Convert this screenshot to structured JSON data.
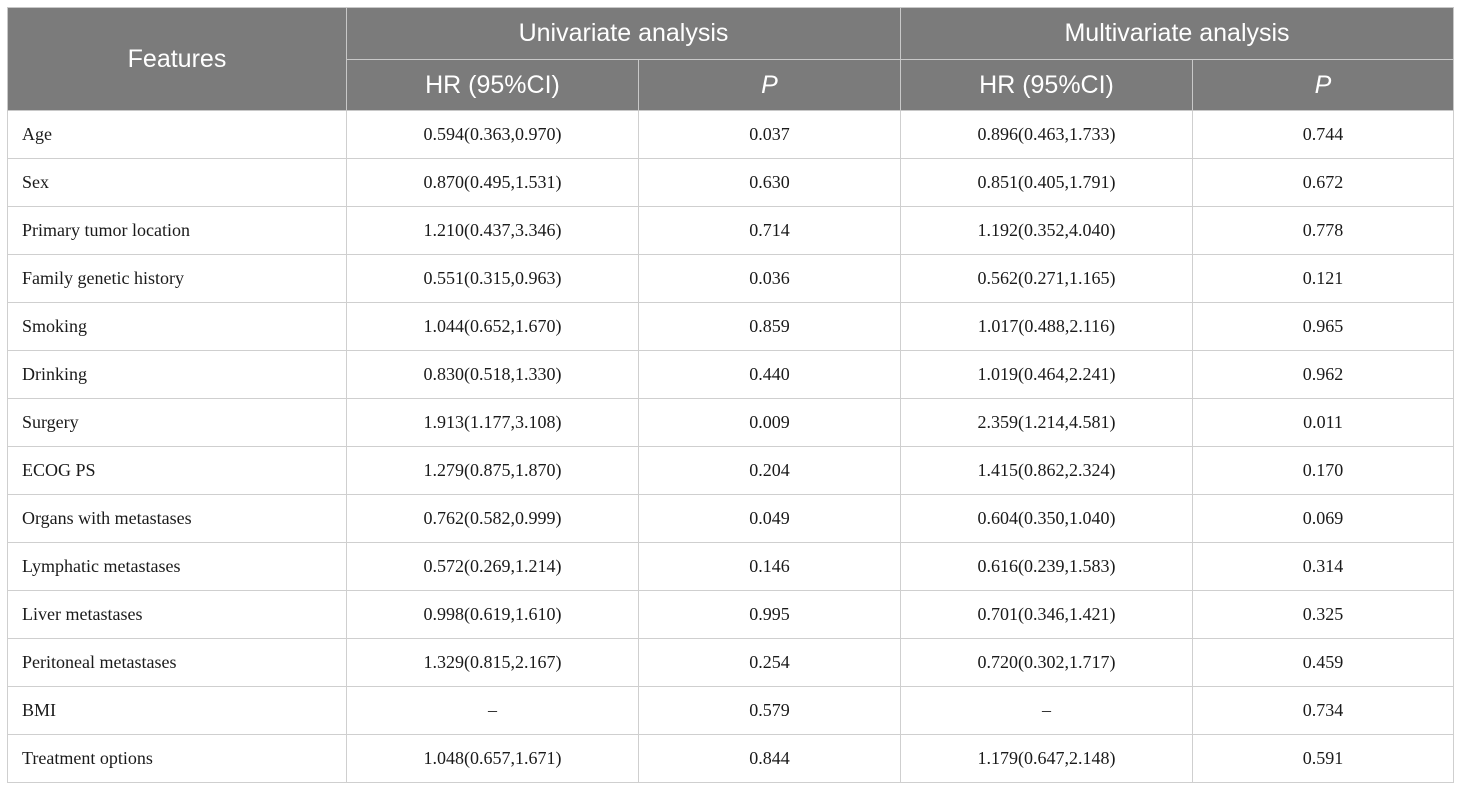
{
  "table": {
    "headers": {
      "features": "Features",
      "univariate": "Univariate analysis",
      "multivariate": "Multivariate analysis",
      "hr": "HR (95%CI)",
      "p": "P"
    },
    "rows": [
      {
        "feature": "Age",
        "uni_hr": "0.594(0.363,0.970)",
        "uni_p": "0.037",
        "multi_hr": "0.896(0.463,1.733)",
        "multi_p": "0.744"
      },
      {
        "feature": "Sex",
        "uni_hr": "0.870(0.495,1.531)",
        "uni_p": "0.630",
        "multi_hr": "0.851(0.405,1.791)",
        "multi_p": "0.672"
      },
      {
        "feature": "Primary tumor location",
        "uni_hr": "1.210(0.437,3.346)",
        "uni_p": "0.714",
        "multi_hr": "1.192(0.352,4.040)",
        "multi_p": "0.778"
      },
      {
        "feature": "Family genetic history",
        "uni_hr": "0.551(0.315,0.963)",
        "uni_p": "0.036",
        "multi_hr": "0.562(0.271,1.165)",
        "multi_p": "0.121"
      },
      {
        "feature": "Smoking",
        "uni_hr": "1.044(0.652,1.670)",
        "uni_p": "0.859",
        "multi_hr": "1.017(0.488,2.116)",
        "multi_p": "0.965"
      },
      {
        "feature": "Drinking",
        "uni_hr": "0.830(0.518,1.330)",
        "uni_p": "0.440",
        "multi_hr": "1.019(0.464,2.241)",
        "multi_p": "0.962"
      },
      {
        "feature": "Surgery",
        "uni_hr": "1.913(1.177,3.108)",
        "uni_p": "0.009",
        "multi_hr": "2.359(1.214,4.581)",
        "multi_p": "0.011"
      },
      {
        "feature": "ECOG PS",
        "uni_hr": "1.279(0.875,1.870)",
        "uni_p": "0.204",
        "multi_hr": "1.415(0.862,2.324)",
        "multi_p": "0.170"
      },
      {
        "feature": "Organs with metastases",
        "uni_hr": "0.762(0.582,0.999)",
        "uni_p": "0.049",
        "multi_hr": "0.604(0.350,1.040)",
        "multi_p": "0.069"
      },
      {
        "feature": "Lymphatic metastases",
        "uni_hr": "0.572(0.269,1.214)",
        "uni_p": "0.146",
        "multi_hr": "0.616(0.239,1.583)",
        "multi_p": "0.314"
      },
      {
        "feature": "Liver metastases",
        "uni_hr": "0.998(0.619,1.610)",
        "uni_p": "0.995",
        "multi_hr": "0.701(0.346,1.421)",
        "multi_p": "0.325"
      },
      {
        "feature": "Peritoneal metastases",
        "uni_hr": "1.329(0.815,2.167)",
        "uni_p": "0.254",
        "multi_hr": "0.720(0.302,1.717)",
        "multi_p": "0.459"
      },
      {
        "feature": "BMI",
        "uni_hr": "–",
        "uni_p": "0.579",
        "multi_hr": "–",
        "multi_p": "0.734"
      },
      {
        "feature": "Treatment options",
        "uni_hr": "1.048(0.657,1.671)",
        "uni_p": "0.844",
        "multi_hr": "1.179(0.647,2.148)",
        "multi_p": "0.591"
      }
    ]
  }
}
